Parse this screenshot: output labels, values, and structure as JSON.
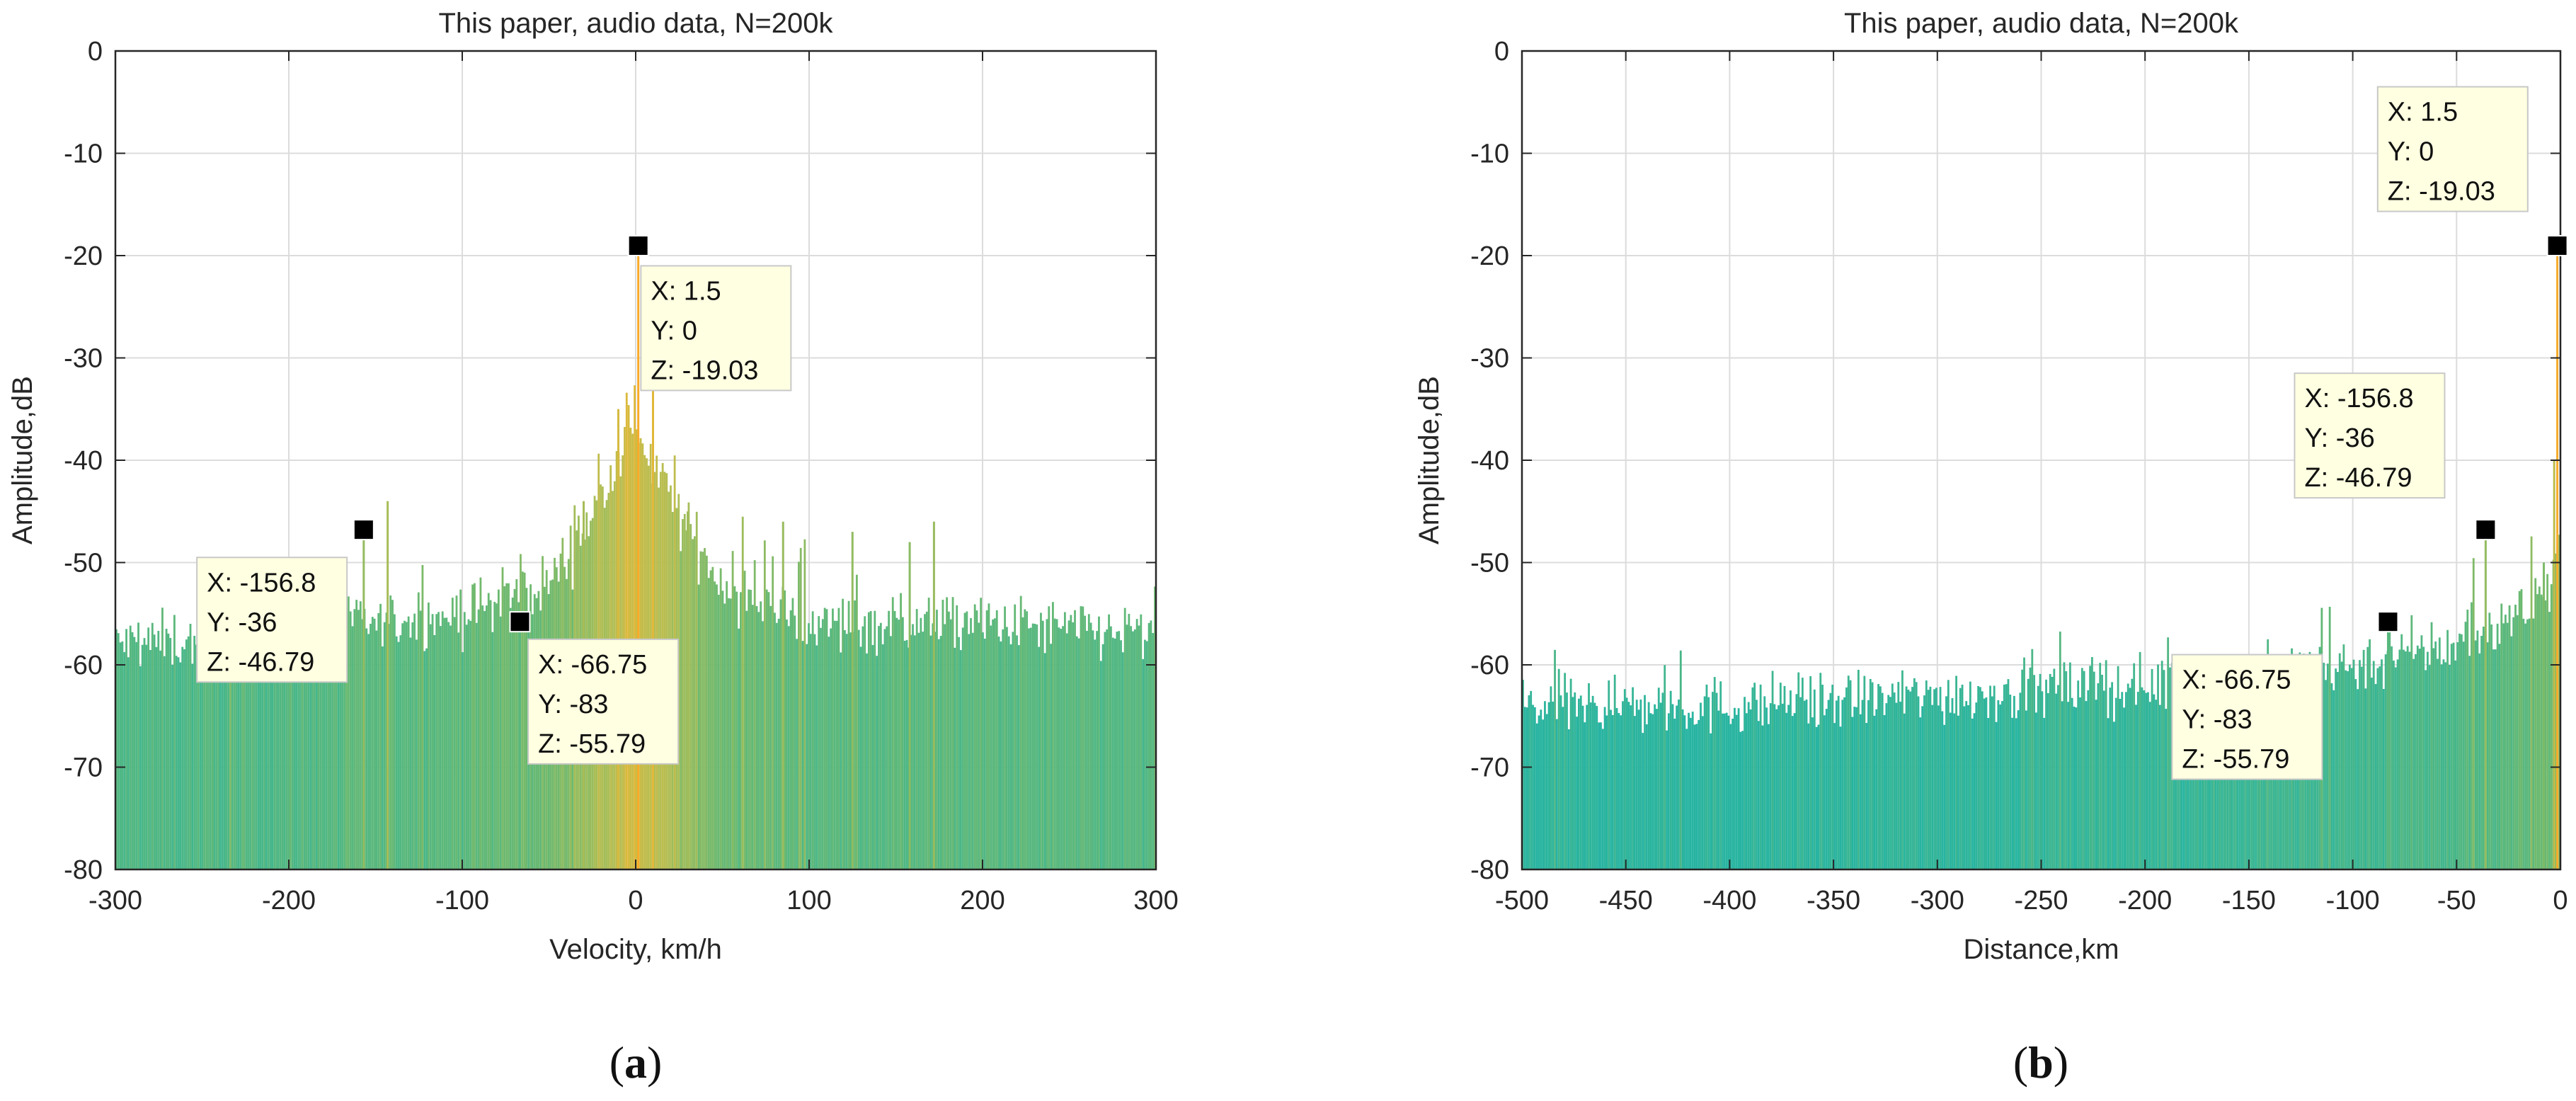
{
  "chart_data": [
    {
      "id": "a",
      "type": "spectrum",
      "title": "This paper, audio data, N=200k",
      "xlabel": "Velocity, km/h",
      "ylabel": "Amplitude,dB",
      "xlim": [
        -300,
        300
      ],
      "ylim": [
        -80,
        0
      ],
      "xticks": [
        -300,
        -200,
        -100,
        0,
        100,
        200,
        300
      ],
      "yticks": [
        0,
        -10,
        -20,
        -30,
        -40,
        -50,
        -60,
        -70,
        -80
      ],
      "grid": true,
      "caption_letter": "a",
      "noise_floor_db": -59,
      "envelope": [
        {
          "x": -300,
          "y": -58
        },
        {
          "x": -200,
          "y": -57
        },
        {
          "x": -100,
          "y": -55
        },
        {
          "x": -50,
          "y": -52
        },
        {
          "x": -20,
          "y": -44
        },
        {
          "x": 0,
          "y": -36
        },
        {
          "x": 20,
          "y": -44
        },
        {
          "x": 50,
          "y": -52
        },
        {
          "x": 100,
          "y": -56
        },
        {
          "x": 200,
          "y": -56
        },
        {
          "x": 300,
          "y": -57
        }
      ],
      "peaks": [
        {
          "x": 1.5,
          "y": -19.03
        },
        {
          "x": 10,
          "y": -31
        },
        {
          "x": -10,
          "y": -35
        },
        {
          "x": -156.8,
          "y": -46.79
        },
        {
          "x": -143,
          "y": -44
        },
        {
          "x": 172,
          "y": -46
        },
        {
          "x": 158,
          "y": -48
        },
        {
          "x": 85,
          "y": -46
        },
        {
          "x": 125,
          "y": -47
        },
        {
          "x": -66.75,
          "y": -55.79
        },
        {
          "x": -30,
          "y": -44
        },
        {
          "x": 30,
          "y": -45
        }
      ],
      "markers": [
        {
          "x": 1.5,
          "y": 0,
          "z": -19.03,
          "label_x": "X: 1.5",
          "label_y": "Y: 0",
          "label_z": "Z: -19.03",
          "box_anchor": [
            3,
            -21
          ],
          "box_side": "right-below"
        },
        {
          "x": -156.8,
          "y": -36,
          "z": -46.79,
          "label_x": "X: -156.8",
          "label_y": "Y: -36",
          "label_z": "Z: -46.79",
          "box_anchor": [
            -253,
            -49.5
          ],
          "box_side": "right-below"
        },
        {
          "x": -66.75,
          "y": -83,
          "z": -55.79,
          "label_x": "X: -66.75",
          "label_y": "Y: -83",
          "label_z": "Z: -55.79",
          "box_anchor": [
            -62,
            -57.5
          ],
          "box_side": "right-below"
        }
      ]
    },
    {
      "id": "b",
      "type": "spectrum",
      "title": "This paper, audio data, N=200k",
      "xlabel": "Distance,km",
      "ylabel": "Amplitude,dB",
      "xlim": [
        -500,
        0
      ],
      "ylim": [
        -80,
        0
      ],
      "xticks": [
        -500,
        -450,
        -400,
        -350,
        -300,
        -250,
        -200,
        -150,
        -100,
        -50,
        0
      ],
      "yticks": [
        0,
        -10,
        -20,
        -30,
        -40,
        -50,
        -60,
        -70,
        -80
      ],
      "grid": true,
      "caption_letter": "b",
      "noise_floor_db": -63,
      "envelope": [
        {
          "x": -500,
          "y": -64
        },
        {
          "x": -400,
          "y": -64
        },
        {
          "x": -300,
          "y": -63
        },
        {
          "x": -200,
          "y": -62
        },
        {
          "x": -150,
          "y": -61
        },
        {
          "x": -100,
          "y": -60
        },
        {
          "x": -50,
          "y": -58
        },
        {
          "x": -20,
          "y": -55
        },
        {
          "x": -5,
          "y": -52
        },
        {
          "x": 0,
          "y": -48
        }
      ],
      "peaks": [
        {
          "x": -1.5,
          "y": -19.03
        },
        {
          "x": -36,
          "y": -46.79
        },
        {
          "x": -83,
          "y": -55.79
        },
        {
          "x": -3,
          "y": -40
        },
        {
          "x": -8,
          "y": -50
        }
      ],
      "markers": [
        {
          "x": 1.5,
          "y": 0,
          "z": -19.03,
          "label_x": "X: 1.5",
          "label_y": "Y: 0",
          "label_z": "Z: -19.03",
          "marker_at": [
            -1.5,
            -19.03
          ],
          "box_anchor": [
            -88,
            -3.5
          ],
          "box_side": "right-below"
        },
        {
          "x": -156.8,
          "y": -36,
          "z": -46.79,
          "label_x": "X: -156.8",
          "label_y": "Y: -36",
          "label_z": "Z: -46.79",
          "marker_at": [
            -36,
            -46.79
          ],
          "box_anchor": [
            -128,
            -31.5
          ],
          "box_side": "right-below"
        },
        {
          "x": -66.75,
          "y": -83,
          "z": -55.79,
          "label_x": "X: -66.75",
          "label_y": "Y: -83",
          "label_z": "Z: -55.79",
          "marker_at": [
            -83,
            -55.79
          ],
          "box_anchor": [
            -187,
            -59
          ],
          "box_side": "right-below"
        }
      ]
    }
  ]
}
